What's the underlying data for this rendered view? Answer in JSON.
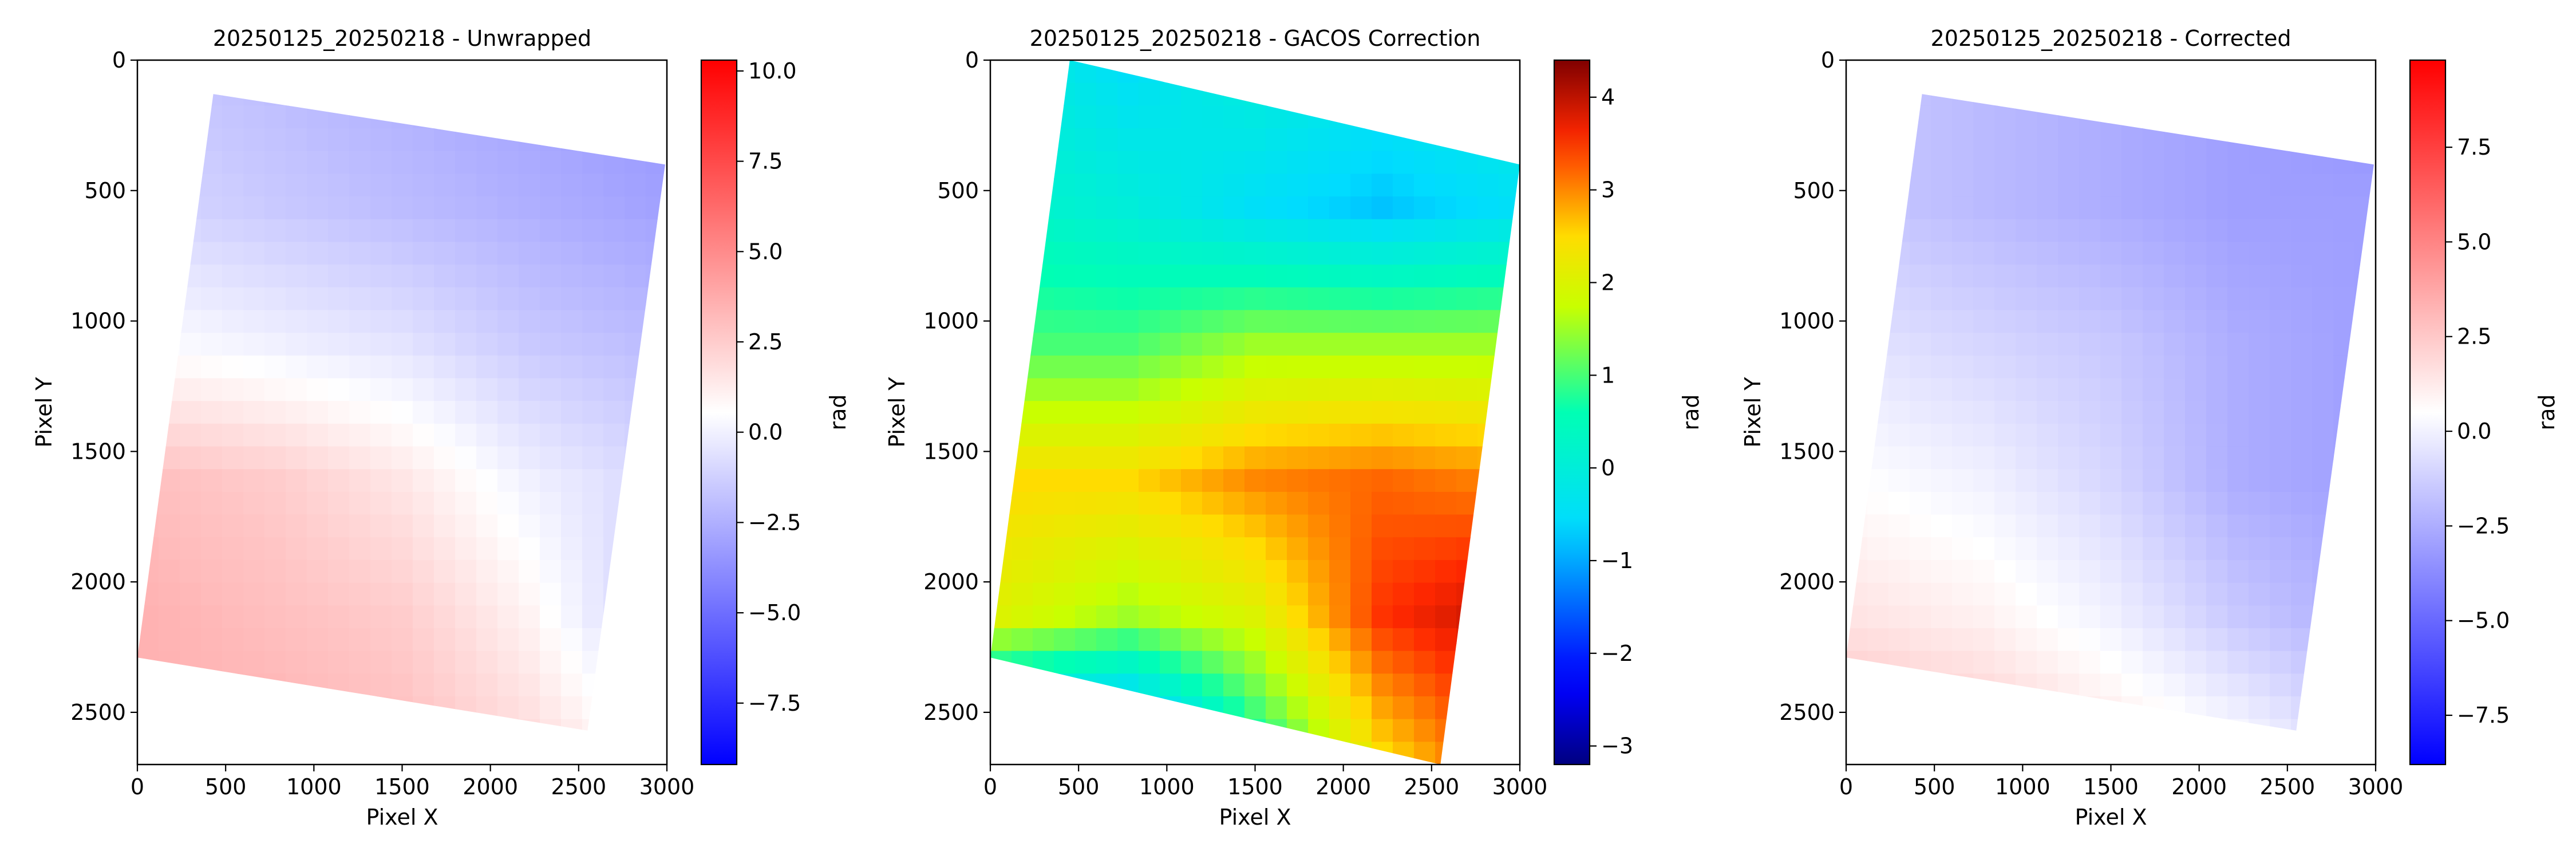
{
  "figure": {
    "panels": [
      {
        "title": "20250125_20250218 - Unwrapped",
        "xlabel": "Pixel X",
        "ylabel": "Pixel Y",
        "xticks": [
          "0",
          "500",
          "1000",
          "1500",
          "2000",
          "2500",
          "3000"
        ],
        "yticks": [
          "0",
          "500",
          "1000",
          "1500",
          "2000",
          "2500"
        ],
        "colorbar": {
          "label": "rad",
          "colormap": "bwr",
          "ticks": [
            "10.0",
            "7.5",
            "5.0",
            "2.5",
            "0.0",
            "−2.5",
            "−5.0",
            "−7.5"
          ]
        }
      },
      {
        "title": "20250125_20250218 - GACOS Correction",
        "xlabel": "Pixel X",
        "ylabel": "Pixel Y",
        "xticks": [
          "0",
          "500",
          "1000",
          "1500",
          "2000",
          "2500",
          "3000"
        ],
        "yticks": [
          "0",
          "500",
          "1000",
          "1500",
          "2000",
          "2500"
        ],
        "colorbar": {
          "label": "rad",
          "colormap": "jet",
          "ticks": [
            "4",
            "3",
            "2",
            "1",
            "0",
            "−1",
            "−2",
            "−3"
          ]
        }
      },
      {
        "title": "20250125_20250218 - Corrected",
        "xlabel": "Pixel X",
        "ylabel": "Pixel Y",
        "xticks": [
          "0",
          "500",
          "1000",
          "1500",
          "2000",
          "2500",
          "3000"
        ],
        "yticks": [
          "0",
          "500",
          "1000",
          "1500",
          "2000",
          "2500"
        ],
        "colorbar": {
          "label": "rad",
          "colormap": "bwr",
          "ticks": [
            "7.5",
            "5.0",
            "2.5",
            "0.0",
            "−2.5",
            "−5.0",
            "−7.5"
          ]
        }
      }
    ]
  },
  "chart_data": [
    {
      "type": "heatmap",
      "title": "20250125_20250218 - Unwrapped",
      "xlabel": "Pixel X",
      "ylabel": "Pixel Y",
      "xlim": [
        0,
        3000
      ],
      "ylim": [
        2700,
        0
      ],
      "colorbar_label": "rad",
      "colormap": "bwr",
      "clim": [
        -9.2,
        10.3
      ],
      "footprint": [
        [
          430,
          130
        ],
        [
          2990,
          400
        ],
        [
          2550,
          2570
        ],
        [
          0,
          2290
        ]
      ],
      "description_values": "north mostly slightly negative (about -1 to -3 rad), south mostly positive (about 2 to 4 rad)",
      "field_grid": {
        "rows_top_to_bottom": [
          [
            -1.5,
            -2.0,
            -2.5,
            -3.0,
            -3.5
          ],
          [
            -1.0,
            -1.5,
            -2.0,
            -2.5,
            -3.0
          ],
          [
            0.5,
            0.0,
            -0.5,
            -1.5,
            -2.0
          ],
          [
            3.0,
            2.5,
            1.5,
            0.0,
            -1.0
          ],
          [
            3.5,
            3.0,
            2.5,
            1.0,
            -1.5
          ],
          [
            3.5,
            3.5,
            3.0,
            2.0,
            0.5
          ]
        ]
      }
    },
    {
      "type": "heatmap",
      "title": "20250125_20250218 - GACOS Correction",
      "xlabel": "Pixel X",
      "ylabel": "Pixel Y",
      "xlim": [
        0,
        3000
      ],
      "ylim": [
        2700,
        0
      ],
      "colorbar_label": "rad",
      "colormap": "jet",
      "clim": [
        -3.2,
        4.4
      ],
      "footprint": [
        [
          450,
          0
        ],
        [
          3000,
          400
        ],
        [
          2550,
          2700
        ],
        [
          0,
          2290
        ]
      ],
      "field_grid": {
        "rows_top_to_bottom": [
          [
            0.0,
            -0.5,
            0.0,
            -0.3,
            0.0
          ],
          [
            0.3,
            0.0,
            -0.5,
            -0.8,
            -0.5
          ],
          [
            1.0,
            1.0,
            1.5,
            1.5,
            1.5
          ],
          [
            2.5,
            2.5,
            3.0,
            3.2,
            3.0
          ],
          [
            2.0,
            1.5,
            2.0,
            3.5,
            4.0
          ],
          [
            -1.5,
            -2.0,
            0.5,
            2.5,
            3.5
          ]
        ]
      }
    },
    {
      "type": "heatmap",
      "title": "20250125_20250218 - Corrected",
      "xlabel": "Pixel X",
      "ylabel": "Pixel Y",
      "xlim": [
        0,
        3000
      ],
      "ylim": [
        2700,
        0
      ],
      "colorbar_label": "rad",
      "colormap": "bwr",
      "clim": [
        -8.8,
        9.8
      ],
      "footprint": [
        [
          430,
          130
        ],
        [
          2990,
          400
        ],
        [
          2550,
          2570
        ],
        [
          0,
          2290
        ]
      ],
      "field_grid": {
        "rows_top_to_bottom": [
          [
            -1.5,
            -2.0,
            -2.5,
            -3.0,
            -3.5
          ],
          [
            -1.5,
            -2.0,
            -2.5,
            -3.0,
            -3.0
          ],
          [
            -0.5,
            -1.0,
            -1.5,
            -2.5,
            -3.0
          ],
          [
            0.5,
            0.0,
            -1.0,
            -2.5,
            -3.0
          ],
          [
            1.5,
            1.0,
            0.0,
            -1.5,
            -2.5
          ],
          [
            3.0,
            2.5,
            1.5,
            0.5,
            -1.0
          ]
        ]
      }
    }
  ]
}
